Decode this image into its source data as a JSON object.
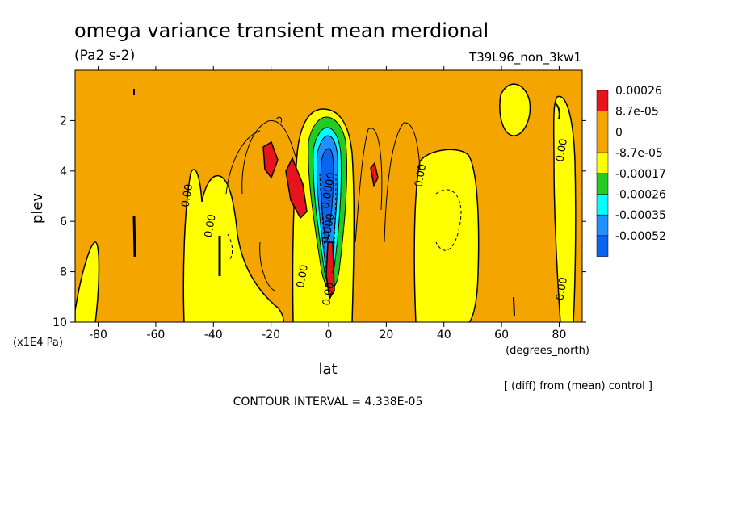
{
  "chart_data": {
    "type": "heatmap",
    "title": "omega variance transient mean merdional",
    "units": "(Pa2 s-2)",
    "run_label": "T39L96_non_3kw1",
    "xlabel": "lat",
    "x_units": "(degrees_north)",
    "ylabel": "plev",
    "y_units": "(x1E4 Pa)",
    "x_ticks": [
      "-80",
      "-60",
      "-40",
      "-20",
      "0",
      "20",
      "40",
      "60",
      "80"
    ],
    "y_ticks": [
      "2",
      "4",
      "6",
      "8",
      "10"
    ],
    "xlim": [
      -88,
      88
    ],
    "ylim": [
      10,
      0
    ],
    "levels": [
      {
        "label": "0.00026",
        "color": "#e8141c"
      },
      {
        "label": "8.7e-05",
        "color": "#f5a500"
      },
      {
        "label": "0",
        "color": "#f5a500"
      },
      {
        "label": "-8.7e-05",
        "color": "#ffff00"
      },
      {
        "label": "-0.00017",
        "color": "#22cc22"
      },
      {
        "label": "-0.00026",
        "color": "#00ffff"
      },
      {
        "label": "-0.00035",
        "color": "#1e90ff"
      },
      {
        "label": "-0.00052",
        "color": "#0a64f0"
      }
    ],
    "background_color": "#f5a500",
    "contour_labels": [
      {
        "text": "0.00",
        "lat": -48,
        "plev": 5.0
      },
      {
        "text": "0.00",
        "lat": -40,
        "plev": 6.2
      },
      {
        "text": "0.00",
        "lat": -8,
        "plev": 8.2
      },
      {
        "text": "0.00",
        "lat": 33,
        "plev": 4.2
      },
      {
        "text": "0.00",
        "lat": 82,
        "plev": 3.2
      },
      {
        "text": "0.00",
        "lat": 82,
        "plev": 8.7
      },
      {
        "text": "0.0000",
        "lat": 1,
        "plev": 4.8
      },
      {
        "text": "0.000",
        "lat": 1,
        "plev": 6.3
      },
      {
        "text": "0.00",
        "lat": 1,
        "plev": 8.9
      }
    ],
    "contour_interval": "CONTOUR INTERVAL = 4.338E-05",
    "note": "[ (diff) from (mean) control ]"
  }
}
